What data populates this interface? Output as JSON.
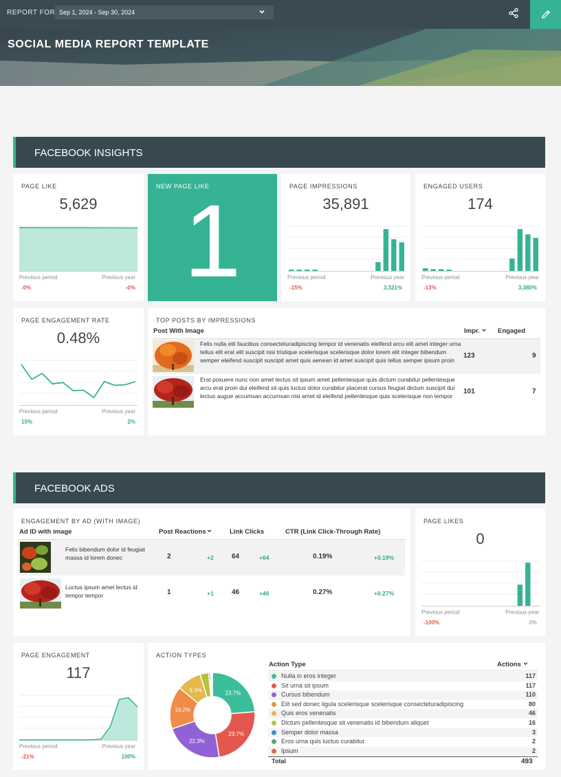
{
  "topbar": {
    "report_for_label": "REPORT FOR",
    "date_range": "Sep 1, 2024 - Sep 30, 2024"
  },
  "banner": {
    "title": "SOCIAL MEDIA REPORT TEMPLATE"
  },
  "facebook_insights": {
    "title": "FACEBOOK INSIGHTS",
    "page_like": {
      "title": "PAGE LIKE",
      "value": "5,629",
      "prev_period_label": "Previous period",
      "prev_year_label": "Previous year",
      "prev_period": "-0%",
      "prev_year": "-0%"
    },
    "new_page_like": {
      "title": "NEW PAGE LIKE",
      "value": "1"
    },
    "page_impressions": {
      "title": "PAGE IMPRESSIONS",
      "value": "35,891",
      "prev_period_label": "Previous period",
      "prev_year_label": "Previous year",
      "prev_period": "-15%",
      "prev_year": "3,321%",
      "bars": [
        0.03,
        0.03,
        0.03,
        0.03,
        0,
        0,
        0,
        0,
        0,
        0,
        0,
        0.2,
        0.95,
        0.72,
        0.65
      ]
    },
    "engaged_users": {
      "title": "ENGAGED USERS",
      "value": "174",
      "prev_period_label": "Previous period",
      "prev_year_label": "Previous year",
      "prev_period": "-13%",
      "prev_year": "3,380%",
      "bars": [
        0.06,
        0.04,
        0.04,
        0.03,
        0,
        0,
        0,
        0,
        0,
        0,
        0,
        0.28,
        0.95,
        0.83,
        0.75
      ]
    },
    "page_engagement_rate": {
      "title": "PAGE ENGAGEMENT RATE",
      "value": "0.48%",
      "prev_period_label": "Previous period",
      "prev_year_label": "Previous year",
      "prev_period": "15%",
      "prev_year": "2%",
      "line": [
        0.88,
        0.55,
        0.68,
        0.45,
        0.48,
        0.3,
        0.31,
        0.15,
        0.5,
        0.42,
        0.43,
        0.5
      ]
    },
    "top_posts": {
      "title": "TOP POSTS BY IMPRESSIONS",
      "col_post": "Post With Image",
      "col_impr": "Impr.",
      "col_engaged": "Engaged",
      "rows": [
        {
          "text": "Felis nulla elit faucibus consecteturadipiscing tempor id venenatis eleifend arcu elit amet integer urna tellus elit erat elit suscipit nisi tristique scelerisque scelerisque dolor lorem elit integer bibendum semper eleifend suscipit suscipit amet quis aenean id amet suscipit quis tellus semper ipsum proin",
          "impr": "123",
          "engaged": "9"
        },
        {
          "text": "Erat posuere nunc non amet lectus sit ipsum amet pellentesque quis dictum curabitur pellentesque arcu erat proin dui eleifend sit quis luctus dolor curabitur placerat cursus feugiat dictum suscipit dui lectus augue accumsan accumsan nisi amet id eleifend pellentesque quis scelerisque non tempor",
          "impr": "101",
          "engaged": "7"
        }
      ]
    }
  },
  "facebook_ads": {
    "title": "FACEBOOK ADS",
    "engagement_by_ad": {
      "title": "ENGAGEMENT BY AD (WITH IMAGE)",
      "col_ad": "Ad ID with image",
      "col_reactions": "Post Reactions",
      "col_clicks": "Link Clicks",
      "col_ctr": "CTR (Link Click-Through Rate)",
      "rows": [
        {
          "text": "Felis bibendum dolor id feugiat massa id lorem donec",
          "reactions": "2",
          "reactions_delta": "+2",
          "clicks": "64",
          "clicks_delta": "+64",
          "ctr": "0.19%",
          "ctr_delta": "+0.19%"
        },
        {
          "text": "Luctus ipsum amet lectus id tempor tempor",
          "reactions": "1",
          "reactions_delta": "+1",
          "clicks": "46",
          "clicks_delta": "+46",
          "ctr": "0.27%",
          "ctr_delta": "+0.27%"
        }
      ]
    },
    "page_likes": {
      "title": "PAGE LIKES",
      "value": "0",
      "prev_period_label": "Previous period",
      "prev_year_label": "Previous year",
      "prev_period": "-100%",
      "prev_year": "0%",
      "bars": [
        0,
        0,
        0,
        0,
        0,
        0,
        0,
        0,
        0,
        0,
        0,
        0,
        0.48,
        0.98,
        0
      ]
    },
    "page_engagement": {
      "title": "PAGE ENGAGEMENT",
      "value": "117",
      "prev_period_label": "Previous period",
      "prev_year_label": "Previous year",
      "prev_period": "-21%",
      "prev_year": "100%",
      "line": [
        0,
        0,
        0,
        0,
        0,
        0,
        0,
        0,
        0,
        0.02,
        0.3,
        0.92,
        0.96,
        0.75
      ]
    },
    "action_types": {
      "title": "ACTION TYPES",
      "col_type": "Action Type",
      "col_actions": "Actions",
      "rows": [
        {
          "label": "Nulla in eros integer",
          "value": "117",
          "color": "#3bbd9c"
        },
        {
          "label": "Sit urna sit ipsum",
          "value": "117",
          "color": "#e4574f"
        },
        {
          "label": "Cursus bibendum",
          "value": "110",
          "color": "#8f63d4"
        },
        {
          "label": "Elit sed donec ligula scelerisque scelerisque consecteturadipiscing",
          "value": "80",
          "color": "#ef8c47"
        },
        {
          "label": "Quis eros venenatis",
          "value": "46",
          "color": "#e4b84a"
        },
        {
          "label": "Dictum pellentesque sit venenatis id bibendum aliquet",
          "value": "16",
          "color": "#b5c23f"
        },
        {
          "label": "Semper dolor massa",
          "value": "3",
          "color": "#3d8bd0"
        },
        {
          "label": "Eros urna quis luctus curabitur",
          "value": "2",
          "color": "#4fa96d"
        },
        {
          "label": "Ipsum",
          "value": "2",
          "color": "#e06a44"
        }
      ],
      "total_label": "Total",
      "total_value": "493",
      "pie_labels": [
        "23.7%",
        "23.7%",
        "22.3%",
        "16.2%",
        "9.3%"
      ]
    }
  }
}
